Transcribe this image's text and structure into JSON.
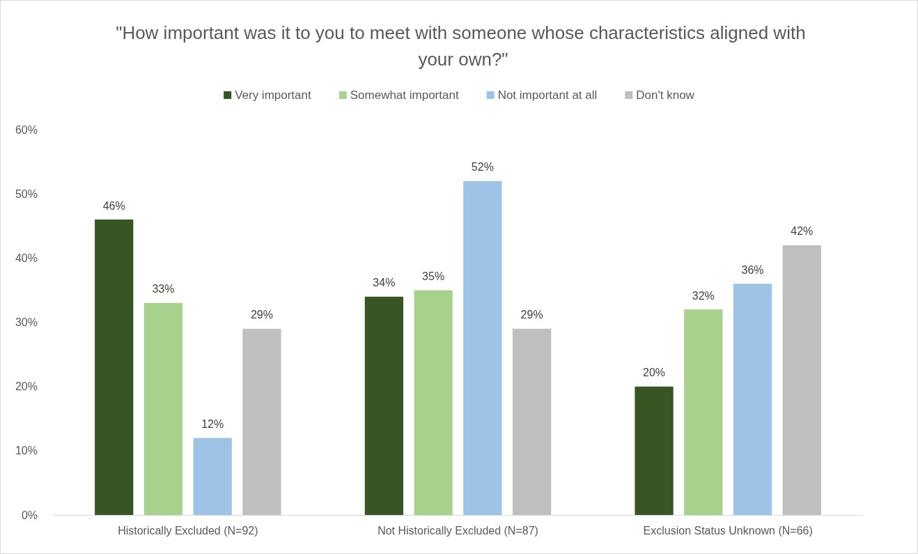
{
  "chart_data": {
    "type": "bar",
    "title": "\"How important was it to you to meet with someone whose characteristics aligned with your own?\"",
    "categories": [
      "Historically Excluded (N=92)",
      "Not Historically Excluded (N=87)",
      "Exclusion Status Unknown (N=66)"
    ],
    "series": [
      {
        "name": "Very important",
        "color": "#375623",
        "values": [
          46,
          34,
          20
        ],
        "value_labels": [
          "46%",
          "34%",
          "20%"
        ]
      },
      {
        "name": "Somewhat important",
        "color": "#a9d18e",
        "values": [
          33,
          35,
          32
        ],
        "value_labels": [
          "33%",
          "35%",
          "32%"
        ]
      },
      {
        "name": "Not important at all",
        "color": "#9dc3e6",
        "values": [
          12,
          52,
          36
        ],
        "value_labels": [
          "12%",
          "52%",
          "36%"
        ]
      },
      {
        "name": "Don't know",
        "color": "#bfbfbf",
        "values": [
          29,
          29,
          42
        ],
        "value_labels": [
          "29%",
          "29%",
          "42%"
        ]
      }
    ],
    "ylim": [
      0,
      60
    ],
    "yticks": [
      {
        "value": 0,
        "label": "0%"
      },
      {
        "value": 10,
        "label": "10%"
      },
      {
        "value": 20,
        "label": "20%"
      },
      {
        "value": 30,
        "label": "30%"
      },
      {
        "value": 40,
        "label": "40%"
      },
      {
        "value": 50,
        "label": "50%"
      },
      {
        "value": 60,
        "label": "60%"
      }
    ],
    "grid": false,
    "legend": "top"
  }
}
